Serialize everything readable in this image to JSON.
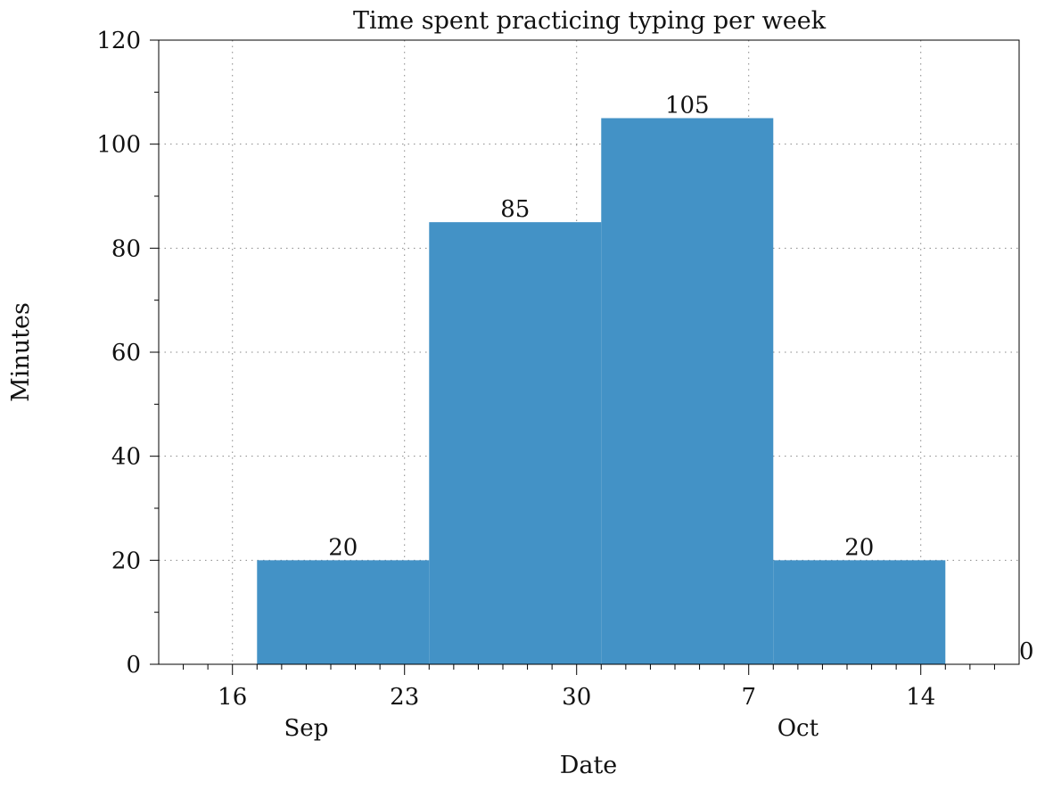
{
  "chart_data": {
    "type": "bar",
    "title": "Time spent practicing typing per week",
    "xlabel": "Date",
    "ylabel": "Minutes",
    "bar_color": "#4392c6",
    "ylim": [
      0,
      120
    ],
    "yticks": [
      0,
      20,
      40,
      60,
      80,
      100,
      120
    ],
    "xlim": [
      "2023-09-13",
      "2023-10-18"
    ],
    "xticks": [
      {
        "date": "2023-09-16",
        "label": "16"
      },
      {
        "date": "2023-09-23",
        "label": "23"
      },
      {
        "date": "2023-09-30",
        "label": "30"
      },
      {
        "date": "2023-10-07",
        "label": "7"
      },
      {
        "date": "2023-10-14",
        "label": "14"
      }
    ],
    "month_labels": [
      {
        "date": "2023-09-19",
        "label": "Sep"
      },
      {
        "date": "2023-10-09",
        "label": "Oct"
      }
    ],
    "grid": true,
    "bars": [
      {
        "start": "2023-09-17",
        "end": "2023-09-24",
        "value": 20,
        "label": "20"
      },
      {
        "start": "2023-09-24",
        "end": "2023-10-01",
        "value": 85,
        "label": "85"
      },
      {
        "start": "2023-10-01",
        "end": "2023-10-08",
        "value": 105,
        "label": "105"
      },
      {
        "start": "2023-10-08",
        "end": "2023-10-15",
        "value": 20,
        "label": "20"
      },
      {
        "start": "2023-10-15",
        "end": "2023-10-22",
        "value": 0,
        "label": "0"
      }
    ]
  }
}
